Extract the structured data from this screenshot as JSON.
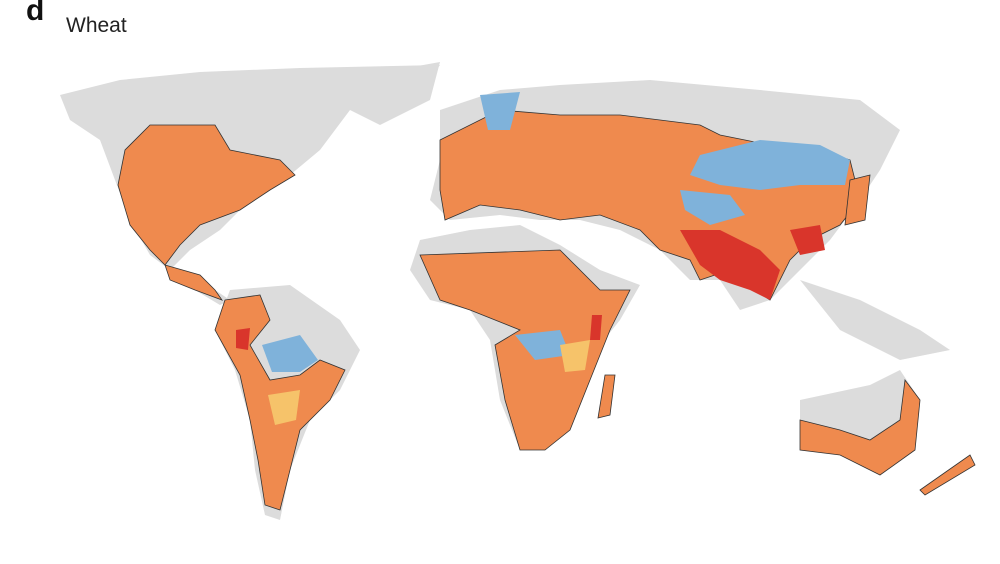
{
  "panel_label": "d",
  "title": "Wheat"
}
